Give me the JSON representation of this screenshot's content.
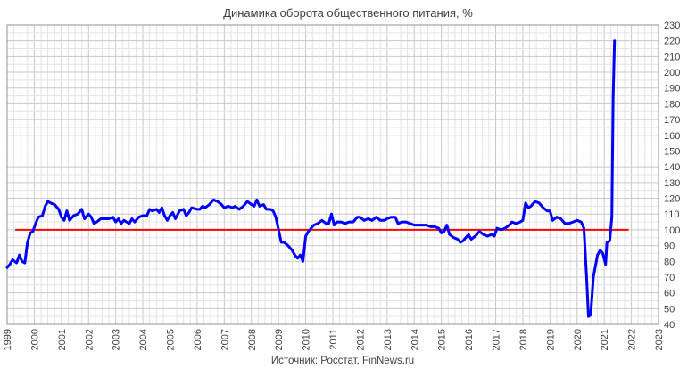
{
  "chart_data": {
    "type": "line",
    "title": "Динамика оборота общественного питания, %",
    "source": "Источник: Росстат, FinNews.ru",
    "xlabel": "",
    "ylabel": "",
    "xlim": [
      1999,
      2023
    ],
    "ylim": [
      40,
      230
    ],
    "x_ticks": [
      "1999",
      "2000",
      "2001",
      "2002",
      "2003",
      "2004",
      "2005",
      "2006",
      "2007",
      "2008",
      "2009",
      "2010",
      "2011",
      "2012",
      "2013",
      "2014",
      "2015",
      "2016",
      "2017",
      "2018",
      "2019",
      "2020",
      "2021",
      "2022",
      "2023"
    ],
    "y_ticks": [
      "40",
      "50",
      "60",
      "70",
      "80",
      "90",
      "100",
      "110",
      "120",
      "130",
      "140",
      "150",
      "160",
      "170",
      "180",
      "190",
      "200",
      "210",
      "220",
      "230"
    ],
    "grid": true,
    "reference_line": {
      "y": 100,
      "color": "#ff0000"
    },
    "series": [
      {
        "color": "#0000ff",
        "points": [
          [
            1999.0,
            76
          ],
          [
            1999.1,
            78
          ],
          [
            1999.2,
            81
          ],
          [
            1999.35,
            79
          ],
          [
            1999.45,
            84
          ],
          [
            1999.55,
            80
          ],
          [
            1999.65,
            79
          ],
          [
            1999.75,
            92
          ],
          [
            1999.85,
            98
          ],
          [
            1999.95,
            99
          ],
          [
            2000.05,
            104
          ],
          [
            2000.15,
            108
          ],
          [
            2000.3,
            109
          ],
          [
            2000.4,
            115
          ],
          [
            2000.5,
            118
          ],
          [
            2000.6,
            117
          ],
          [
            2000.75,
            116
          ],
          [
            2000.9,
            113
          ],
          [
            2001.0,
            108
          ],
          [
            2001.1,
            106
          ],
          [
            2001.2,
            112
          ],
          [
            2001.3,
            106
          ],
          [
            2001.45,
            109
          ],
          [
            2001.6,
            110
          ],
          [
            2001.75,
            113
          ],
          [
            2001.85,
            107
          ],
          [
            2002.0,
            110
          ],
          [
            2002.1,
            108
          ],
          [
            2002.2,
            104
          ],
          [
            2002.3,
            105
          ],
          [
            2002.45,
            107
          ],
          [
            2002.6,
            107
          ],
          [
            2002.75,
            107
          ],
          [
            2002.9,
            108
          ],
          [
            2003.0,
            105
          ],
          [
            2003.1,
            107
          ],
          [
            2003.2,
            104
          ],
          [
            2003.3,
            106
          ],
          [
            2003.4,
            105
          ],
          [
            2003.5,
            104
          ],
          [
            2003.6,
            107
          ],
          [
            2003.7,
            105
          ],
          [
            2003.85,
            108
          ],
          [
            2004.0,
            109
          ],
          [
            2004.15,
            109
          ],
          [
            2004.25,
            113
          ],
          [
            2004.35,
            112
          ],
          [
            2004.5,
            113
          ],
          [
            2004.6,
            111
          ],
          [
            2004.7,
            114
          ],
          [
            2004.8,
            109
          ],
          [
            2004.9,
            106
          ],
          [
            2005.0,
            109
          ],
          [
            2005.1,
            111
          ],
          [
            2005.2,
            107
          ],
          [
            2005.35,
            112
          ],
          [
            2005.5,
            113
          ],
          [
            2005.6,
            109
          ],
          [
            2005.7,
            111
          ],
          [
            2005.8,
            114
          ],
          [
            2006.0,
            113
          ],
          [
            2006.1,
            113
          ],
          [
            2006.2,
            115
          ],
          [
            2006.3,
            114
          ],
          [
            2006.45,
            116
          ],
          [
            2006.6,
            119
          ],
          [
            2006.75,
            118
          ],
          [
            2006.9,
            116
          ],
          [
            2007.0,
            114
          ],
          [
            2007.15,
            115
          ],
          [
            2007.3,
            114
          ],
          [
            2007.4,
            115
          ],
          [
            2007.55,
            113
          ],
          [
            2007.7,
            115
          ],
          [
            2007.85,
            118
          ],
          [
            2008.0,
            116
          ],
          [
            2008.1,
            115
          ],
          [
            2008.2,
            119
          ],
          [
            2008.3,
            115
          ],
          [
            2008.45,
            116
          ],
          [
            2008.55,
            113
          ],
          [
            2008.7,
            113
          ],
          [
            2008.8,
            112
          ],
          [
            2008.9,
            108
          ],
          [
            2009.0,
            100
          ],
          [
            2009.1,
            92
          ],
          [
            2009.2,
            92
          ],
          [
            2009.35,
            90
          ],
          [
            2009.5,
            87
          ],
          [
            2009.6,
            84
          ],
          [
            2009.7,
            82
          ],
          [
            2009.8,
            84
          ],
          [
            2009.9,
            80
          ],
          [
            2010.0,
            96
          ],
          [
            2010.1,
            99
          ],
          [
            2010.2,
            101
          ],
          [
            2010.3,
            103
          ],
          [
            2010.45,
            104
          ],
          [
            2010.6,
            106
          ],
          [
            2010.75,
            104
          ],
          [
            2010.85,
            104
          ],
          [
            2010.95,
            110
          ],
          [
            2011.05,
            103
          ],
          [
            2011.15,
            105
          ],
          [
            2011.3,
            105
          ],
          [
            2011.45,
            104
          ],
          [
            2011.6,
            105
          ],
          [
            2011.75,
            105
          ],
          [
            2011.9,
            108
          ],
          [
            2012.0,
            108
          ],
          [
            2012.15,
            106
          ],
          [
            2012.3,
            107
          ],
          [
            2012.45,
            106
          ],
          [
            2012.6,
            108
          ],
          [
            2012.75,
            106
          ],
          [
            2012.9,
            106
          ],
          [
            2013.0,
            107
          ],
          [
            2013.15,
            108
          ],
          [
            2013.3,
            108
          ],
          [
            2013.4,
            104
          ],
          [
            2013.55,
            105
          ],
          [
            2013.7,
            105
          ],
          [
            2013.85,
            104
          ],
          [
            2014.0,
            103
          ],
          [
            2014.15,
            103
          ],
          [
            2014.3,
            103
          ],
          [
            2014.45,
            103
          ],
          [
            2014.6,
            102
          ],
          [
            2014.75,
            102
          ],
          [
            2014.9,
            101
          ],
          [
            2015.0,
            98
          ],
          [
            2015.1,
            99
          ],
          [
            2015.2,
            103
          ],
          [
            2015.3,
            97
          ],
          [
            2015.45,
            95
          ],
          [
            2015.6,
            94
          ],
          [
            2015.7,
            92
          ],
          [
            2015.8,
            93
          ],
          [
            2015.9,
            95
          ],
          [
            2016.0,
            97
          ],
          [
            2016.1,
            94
          ],
          [
            2016.25,
            96
          ],
          [
            2016.4,
            99
          ],
          [
            2016.55,
            97
          ],
          [
            2016.7,
            96
          ],
          [
            2016.85,
            97
          ],
          [
            2016.95,
            96
          ],
          [
            2017.05,
            101
          ],
          [
            2017.2,
            100
          ],
          [
            2017.35,
            101
          ],
          [
            2017.5,
            103
          ],
          [
            2017.6,
            105
          ],
          [
            2017.75,
            104
          ],
          [
            2017.9,
            105
          ],
          [
            2018.0,
            106
          ],
          [
            2018.1,
            117
          ],
          [
            2018.2,
            114
          ],
          [
            2018.3,
            115
          ],
          [
            2018.45,
            118
          ],
          [
            2018.6,
            117
          ],
          [
            2018.75,
            114
          ],
          [
            2018.9,
            112
          ],
          [
            2019.0,
            112
          ],
          [
            2019.1,
            106
          ],
          [
            2019.25,
            108
          ],
          [
            2019.4,
            107
          ],
          [
            2019.55,
            104
          ],
          [
            2019.7,
            104
          ],
          [
            2019.85,
            105
          ],
          [
            2020.0,
            106
          ],
          [
            2020.15,
            105
          ],
          [
            2020.25,
            101
          ],
          [
            2020.35,
            70
          ],
          [
            2020.42,
            45
          ],
          [
            2020.5,
            46
          ],
          [
            2020.6,
            70
          ],
          [
            2020.75,
            84
          ],
          [
            2020.85,
            87
          ],
          [
            2020.95,
            85
          ],
          [
            2021.05,
            78
          ],
          [
            2021.1,
            92
          ],
          [
            2021.2,
            93
          ],
          [
            2021.28,
            108
          ],
          [
            2021.33,
            185
          ],
          [
            2021.38,
            220
          ]
        ]
      }
    ]
  }
}
